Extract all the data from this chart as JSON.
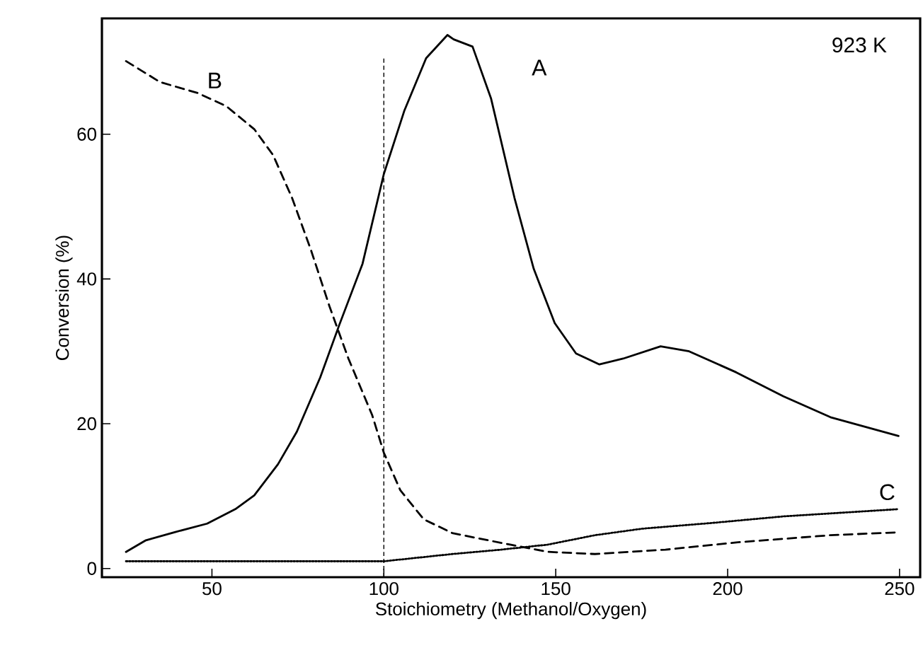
{
  "chart_data": {
    "type": "line",
    "xlabel": "Stoichiometry (Methanol/Oxygen)",
    "ylabel": "Conversion  (%)",
    "xlim": [
      18,
      256
    ],
    "ylim": [
      -1.2,
      76
    ],
    "xticks": [
      50,
      100,
      150,
      200,
      250
    ],
    "yticks": [
      0,
      20,
      40,
      60
    ],
    "grid": false,
    "series": [
      {
        "name": "A",
        "color": "#000000",
        "line_style": "solid",
        "x": [
          25,
          30.8,
          39,
          48.6,
          56.8,
          62.3,
          69.2,
          74.7,
          81.5,
          87,
          93.8,
          100,
          106,
          112.3,
          118.5,
          120.3,
          125.8,
          131.2,
          138,
          143.6,
          149.7,
          155.9,
          162.7,
          169.6,
          180.5,
          188.8,
          202.5,
          216.2,
          229.9,
          249.7
        ],
        "values": [
          2.3,
          3.9,
          5.0,
          6.2,
          8.2,
          10.1,
          14.4,
          18.9,
          26.4,
          33.6,
          42.1,
          54.5,
          63.3,
          70.5,
          73.7,
          73.1,
          72.1,
          64.9,
          51.2,
          41.4,
          33.9,
          29.7,
          28.2,
          29.0,
          30.7,
          30.0,
          27.1,
          23.8,
          20.9,
          18.3
        ]
      },
      {
        "name": "B",
        "color": "#000000",
        "line_style": "dashed",
        "x": [
          25,
          34.9,
          45.8,
          54.1,
          62.3,
          67.8,
          73.3,
          78.8,
          84.2,
          89.7,
          96.6,
          100,
          104.8,
          111.6,
          119.9,
          127.1,
          136.7,
          147.7,
          161.4,
          181.9,
          202.5,
          229.9,
          249.7
        ],
        "values": [
          70.1,
          67.2,
          65.7,
          63.9,
          60.7,
          57.1,
          51.2,
          44.0,
          36.2,
          29.0,
          21.2,
          16.0,
          10.8,
          6.8,
          4.9,
          4.2,
          3.3,
          2.3,
          2.0,
          2.6,
          3.6,
          4.6,
          5.0
        ]
      },
      {
        "name": "C",
        "color": "#000000",
        "line_style": "dotted",
        "x": [
          25,
          100,
          119.9,
          134,
          147.7,
          161.4,
          175.1,
          195.6,
          216.2,
          249.7
        ],
        "values": [
          1.0,
          1.0,
          2.0,
          2.6,
          3.3,
          4.6,
          5.5,
          6.3,
          7.2,
          8.2
        ]
      }
    ],
    "ref_lines": [
      {
        "axis": "x",
        "value": 100,
        "line_style": "dashed",
        "color": "#000000"
      }
    ],
    "annotations": [
      "923 K"
    ]
  }
}
